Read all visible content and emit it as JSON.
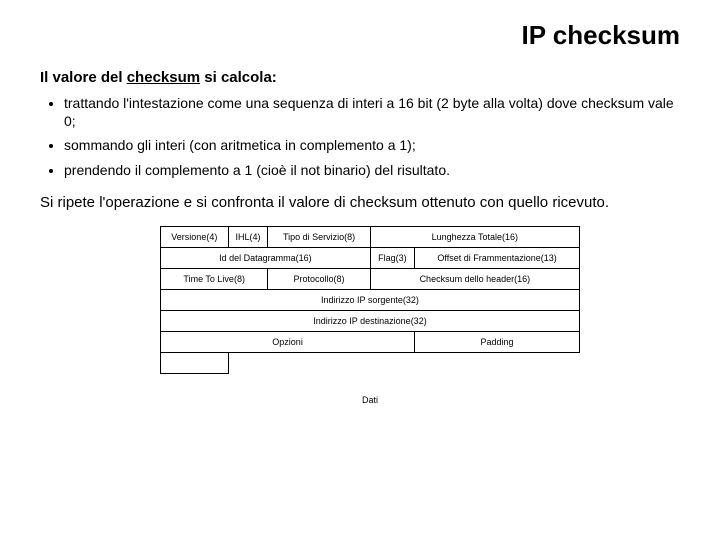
{
  "title": "IP checksum",
  "subtitle_prefix": "Il valore del ",
  "subtitle_underline": "checksum",
  "subtitle_suffix": " si calcola:",
  "bullets": [
    "trattando l'intestazione come una sequenza di interi a 16 bit (2 byte alla volta) dove checksum vale 0;",
    "sommando gli interi (con aritmetica in complemento a 1);",
    "prendendo il complemento a 1 (cioè il not binario) del risultato."
  ],
  "paragraph": "Si ripete l'operazione e si confronta il valore di checksum ottenuto con quello ricevuto.",
  "ip_header": {
    "row1": {
      "versione": "Versione(4)",
      "ihl": "IHL(4)",
      "tos": "Tipo di Servizio(8)",
      "lunghezza": "Lunghezza Totale(16)"
    },
    "row2": {
      "id": "Id del Datagramma(16)",
      "flag": "Flag(3)",
      "offset": "Offset di Frammentazione(13)"
    },
    "row3": {
      "ttl": "Time To Live(8)",
      "proto": "Protocollo(8)",
      "checksum": "Checksum dello header(16)"
    },
    "row4": {
      "src": "Indirizzo IP sorgente(32)"
    },
    "row5": {
      "dst": "Indirizzo IP destinazione(32)"
    },
    "row6": {
      "opzioni": "Opzioni",
      "padding": "Padding"
    },
    "dati": "Dati"
  }
}
